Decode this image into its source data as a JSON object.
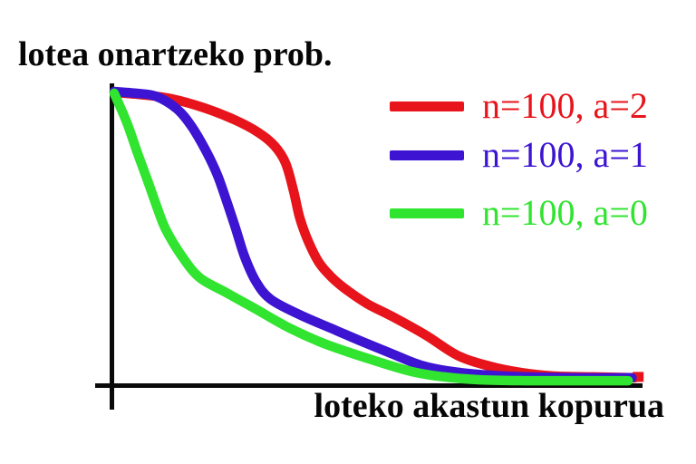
{
  "chart_data": {
    "type": "line",
    "title": "",
    "ylabel": "lotea onartzeko prob.",
    "xlabel": "loteko akastun kopurua",
    "x_ticks": [],
    "y_ticks": [],
    "grid": false,
    "legend_position": "upper right",
    "x_unit": "fraction of x-axis length (no tick labels shown)",
    "y_unit": "acceptance probability, 0 to 1 (no tick labels shown)",
    "axis_color": "#0a0a0a",
    "text_color": "#060606",
    "series": [
      {
        "id": "n100-a2",
        "name": "n=100, a=2",
        "color": "#e8141b",
        "end_cap": true,
        "points": [
          [
            0.0,
            0.997
          ],
          [
            0.059,
            0.988
          ],
          [
            0.11,
            0.975
          ],
          [
            0.171,
            0.944
          ],
          [
            0.228,
            0.904
          ],
          [
            0.274,
            0.86
          ],
          [
            0.305,
            0.814
          ],
          [
            0.326,
            0.755
          ],
          [
            0.341,
            0.661
          ],
          [
            0.353,
            0.568
          ],
          [
            0.369,
            0.488
          ],
          [
            0.39,
            0.413
          ],
          [
            0.414,
            0.363
          ],
          [
            0.438,
            0.326
          ],
          [
            0.481,
            0.273
          ],
          [
            0.528,
            0.23
          ],
          [
            0.593,
            0.165
          ],
          [
            0.653,
            0.096
          ],
          [
            0.714,
            0.059
          ],
          [
            0.774,
            0.037
          ],
          [
            0.834,
            0.025
          ],
          [
            0.912,
            0.022
          ],
          [
            0.99,
            0.019
          ]
        ]
      },
      {
        "id": "n100-a1",
        "name": "n=100, a=1",
        "color": "#3c14d2",
        "end_cap": false,
        "points": [
          [
            0.0,
            1.0
          ],
          [
            0.041,
            0.994
          ],
          [
            0.079,
            0.984
          ],
          [
            0.119,
            0.941
          ],
          [
            0.148,
            0.879
          ],
          [
            0.176,
            0.792
          ],
          [
            0.197,
            0.711
          ],
          [
            0.214,
            0.624
          ],
          [
            0.231,
            0.531
          ],
          [
            0.248,
            0.435
          ],
          [
            0.269,
            0.351
          ],
          [
            0.297,
            0.289
          ],
          [
            0.352,
            0.236
          ],
          [
            0.412,
            0.189
          ],
          [
            0.472,
            0.143
          ],
          [
            0.528,
            0.102
          ],
          [
            0.584,
            0.062
          ],
          [
            0.645,
            0.04
          ],
          [
            0.714,
            0.028
          ],
          [
            0.783,
            0.022
          ],
          [
            0.886,
            0.019
          ],
          [
            0.985,
            0.019
          ]
        ]
      },
      {
        "id": "n100-a0",
        "name": "n=100, a=0",
        "color": "#30e430",
        "end_cap": false,
        "points": [
          [
            0.0,
            0.994
          ],
          [
            0.024,
            0.894
          ],
          [
            0.045,
            0.786
          ],
          [
            0.064,
            0.693
          ],
          [
            0.081,
            0.606
          ],
          [
            0.098,
            0.528
          ],
          [
            0.128,
            0.438
          ],
          [
            0.162,
            0.363
          ],
          [
            0.21,
            0.314
          ],
          [
            0.266,
            0.258
          ],
          [
            0.334,
            0.189
          ],
          [
            0.403,
            0.134
          ],
          [
            0.49,
            0.081
          ],
          [
            0.567,
            0.04
          ],
          [
            0.628,
            0.022
          ],
          [
            0.697,
            0.012
          ],
          [
            0.783,
            0.009
          ],
          [
            0.886,
            0.009
          ],
          [
            0.978,
            0.009
          ]
        ]
      }
    ]
  }
}
